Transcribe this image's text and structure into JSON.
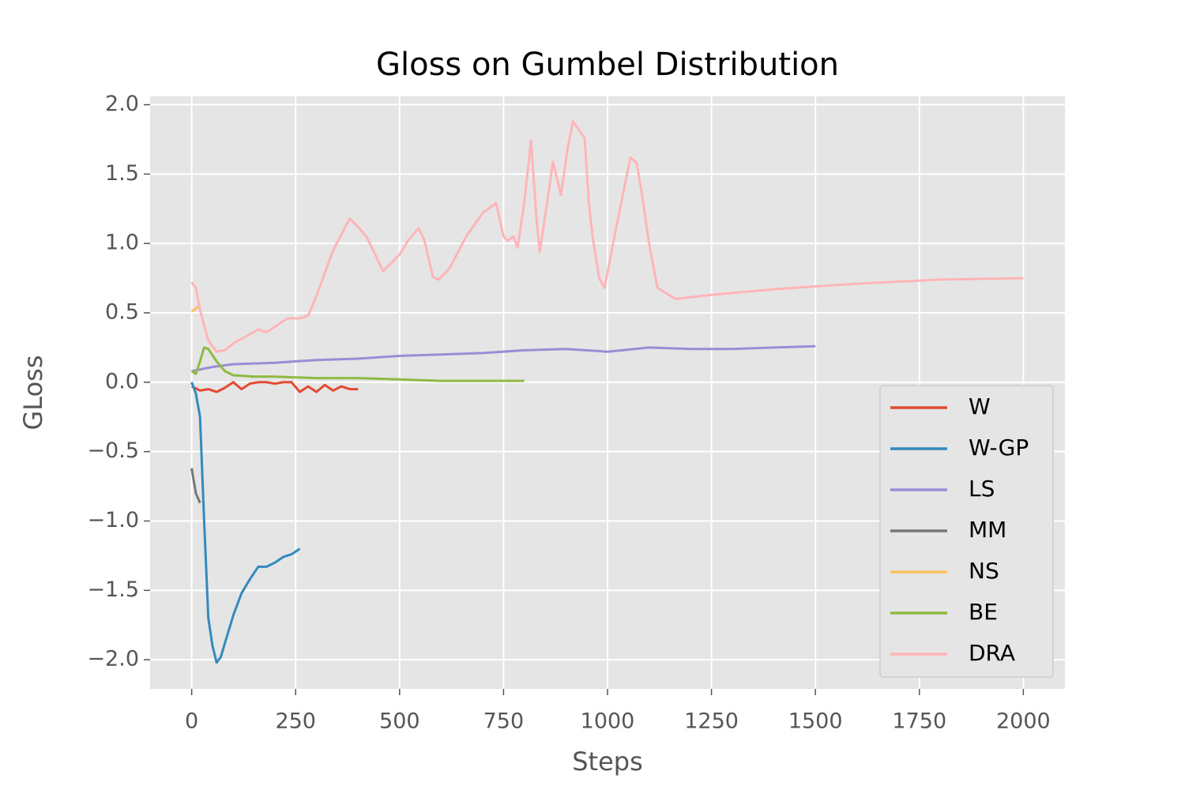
{
  "chart_data": {
    "type": "line",
    "title": "Gloss on Gumbel Distribution",
    "x_label": "Steps",
    "y_label": "GLoss",
    "xlim": [
      -100,
      2100
    ],
    "ylim": [
      -2.21,
      2.06
    ],
    "xticks": [
      0,
      250,
      500,
      750,
      1000,
      1250,
      1500,
      1750,
      2000
    ],
    "yticks": [
      {
        "value": 2,
        "label": "2.0"
      },
      1.5,
      {
        "value": 1,
        "label": "1.0"
      },
      0.5,
      {
        "value": 0,
        "label": "0.0"
      },
      {
        "value": -0.5,
        "label": "−0.5"
      },
      {
        "value": -1,
        "label": "−1.0"
      },
      {
        "value": -1.5,
        "label": "−1.5"
      },
      {
        "value": -2,
        "label": "−2.0"
      }
    ],
    "grid": true,
    "legend": "lower right",
    "series": [
      {
        "name": "W",
        "color": "#E24A33",
        "x": [
          0,
          20,
          40,
          60,
          80,
          100,
          120,
          140,
          160,
          180,
          200,
          220,
          240,
          260,
          280,
          300,
          320,
          340,
          360,
          380,
          400
        ],
        "values": [
          -0.03,
          -0.06,
          -0.05,
          -0.07,
          -0.04,
          0.0,
          -0.05,
          -0.01,
          0.0,
          0.0,
          -0.01,
          0.0,
          0.0,
          -0.07,
          -0.03,
          -0.07,
          -0.02,
          -0.06,
          -0.03,
          -0.05,
          -0.05
        ]
      },
      {
        "name": "W-GP",
        "color": "#348ABD",
        "x": [
          0,
          10,
          20,
          30,
          40,
          50,
          60,
          70,
          80,
          100,
          120,
          140,
          160,
          180,
          200,
          220,
          240,
          260
        ],
        "values": [
          0.0,
          -0.08,
          -0.25,
          -1.0,
          -1.7,
          -1.9,
          -2.02,
          -1.98,
          -1.88,
          -1.68,
          -1.52,
          -1.42,
          -1.33,
          -1.33,
          -1.3,
          -1.26,
          -1.24,
          -1.2
        ]
      },
      {
        "name": "LS",
        "color": "#988ED5",
        "x": [
          0,
          50,
          100,
          200,
          300,
          400,
          500,
          600,
          700,
          800,
          900,
          1000,
          1100,
          1200,
          1300,
          1400,
          1500
        ],
        "values": [
          0.08,
          0.11,
          0.13,
          0.14,
          0.16,
          0.17,
          0.19,
          0.2,
          0.21,
          0.23,
          0.24,
          0.22,
          0.25,
          0.24,
          0.24,
          0.25,
          0.26
        ]
      },
      {
        "name": "MM",
        "color": "#777777",
        "x": [
          0,
          10,
          20
        ],
        "values": [
          -0.62,
          -0.8,
          -0.87
        ]
      },
      {
        "name": "NS",
        "color": "#FBC15E",
        "x": [
          0,
          10,
          20
        ],
        "values": [
          0.51,
          0.53,
          0.56
        ]
      },
      {
        "name": "BE",
        "color": "#8EBA42",
        "x": [
          0,
          10,
          20,
          30,
          40,
          60,
          80,
          100,
          150,
          200,
          300,
          400,
          500,
          600,
          700,
          800
        ],
        "values": [
          0.08,
          0.06,
          0.15,
          0.25,
          0.24,
          0.15,
          0.08,
          0.05,
          0.04,
          0.04,
          0.03,
          0.03,
          0.02,
          0.01,
          0.01,
          0.01
        ]
      },
      {
        "name": "DRA",
        "color": "#FFB5B8",
        "x": [
          0,
          10,
          20,
          40,
          60,
          80,
          100,
          130,
          160,
          180,
          200,
          230,
          260,
          280,
          300,
          340,
          380,
          400,
          420,
          440,
          460,
          480,
          500,
          520,
          546,
          560,
          580,
          594,
          620,
          660,
          700,
          732,
          750,
          760,
          774,
          784,
          800,
          816,
          830,
          837,
          855,
          869,
          888,
          905,
          917,
          945,
          955,
          964,
          980,
          993,
          1020,
          1055,
          1070,
          1082,
          1100,
          1120,
          1163,
          1250,
          1400,
          1600,
          1800,
          2000
        ],
        "values": [
          0.72,
          0.68,
          0.52,
          0.3,
          0.22,
          0.23,
          0.28,
          0.33,
          0.38,
          0.36,
          0.4,
          0.46,
          0.46,
          0.48,
          0.62,
          0.95,
          1.18,
          1.12,
          1.05,
          0.93,
          0.8,
          0.86,
          0.92,
          1.02,
          1.11,
          1.02,
          0.76,
          0.74,
          0.82,
          1.05,
          1.22,
          1.29,
          1.05,
          1.02,
          1.05,
          0.97,
          1.3,
          1.74,
          1.15,
          0.94,
          1.3,
          1.59,
          1.35,
          1.7,
          1.88,
          1.76,
          1.3,
          1.05,
          0.75,
          0.68,
          1.1,
          1.62,
          1.58,
          1.37,
          1.0,
          0.68,
          0.6,
          0.63,
          0.67,
          0.71,
          0.74,
          0.75
        ]
      }
    ]
  }
}
